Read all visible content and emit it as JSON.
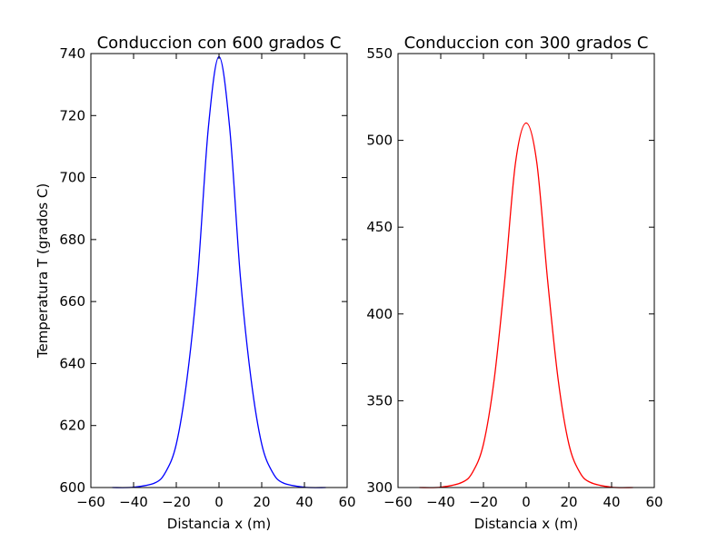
{
  "chart_data": [
    {
      "type": "line",
      "title": "Conduccion con 600 grados C",
      "xlabel": "Distancia x (m)",
      "ylabel": "Temperatura T (grados C)",
      "xlim": [
        -60,
        60
      ],
      "ylim": [
        600,
        740
      ],
      "xticks": [
        "−60",
        "−40",
        "−20",
        "0",
        "20",
        "40",
        "60"
      ],
      "yticks": [
        "600",
        "620",
        "640",
        "660",
        "680",
        "700",
        "720",
        "740"
      ],
      "grid": false,
      "series": [
        {
          "color": "#0000ff",
          "x": [
            -50,
            -40,
            -30,
            -25,
            -20,
            -15,
            -10,
            -5,
            0,
            5,
            10,
            15,
            20,
            25,
            30,
            40,
            50
          ],
          "y": [
            600,
            600.1,
            601.5,
            605,
            614,
            635,
            668,
            716,
            739,
            716,
            668,
            635,
            614,
            605,
            601.5,
            600.1,
            600
          ]
        }
      ]
    },
    {
      "type": "line",
      "title": "Conduccion con 300 grados C",
      "xlabel": "Distancia x (m)",
      "ylabel": "",
      "xlim": [
        -60,
        60
      ],
      "ylim": [
        300,
        550
      ],
      "xticks": [
        "−60",
        "−40",
        "−20",
        "0",
        "20",
        "40",
        "60"
      ],
      "yticks": [
        "300",
        "350",
        "400",
        "450",
        "500",
        "550"
      ],
      "grid": false,
      "series": [
        {
          "color": "#ff0000",
          "x": [
            -50,
            -40,
            -30,
            -25,
            -20,
            -15,
            -10,
            -5,
            0,
            5,
            10,
            15,
            20,
            25,
            30,
            40,
            50
          ],
          "y": [
            300,
            300.2,
            303,
            309,
            325,
            362,
            420,
            487,
            510,
            487,
            420,
            362,
            325,
            309,
            303,
            300.2,
            300
          ]
        }
      ]
    }
  ]
}
